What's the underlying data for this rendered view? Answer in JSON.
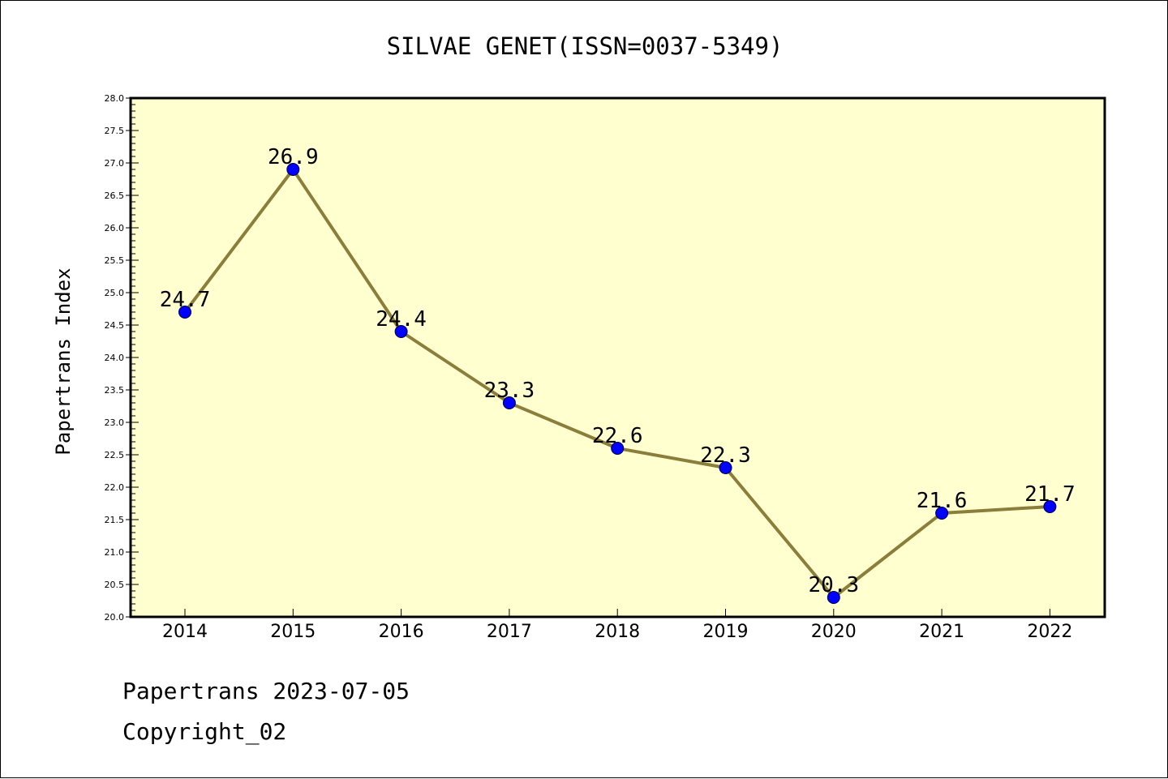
{
  "chart_data": {
    "type": "line",
    "title": "SILVAE GENET(ISSN=0037-5349)",
    "xlabel": "",
    "ylabel": "Papertrans Index",
    "categories": [
      "2014",
      "2015",
      "2016",
      "2017",
      "2018",
      "2019",
      "2020",
      "2021",
      "2022"
    ],
    "series": [
      {
        "values": [
          24.7,
          26.9,
          24.4,
          23.3,
          22.6,
          22.3,
          20.3,
          21.6,
          21.7
        ]
      }
    ],
    "data_labels": [
      "24.7",
      "26.9",
      "24.4",
      "23.3",
      "22.6",
      "22.3",
      "20.3",
      "21.6",
      "21.7"
    ],
    "ylim": [
      20.0,
      28.0
    ],
    "yticks": [
      "20.0",
      "20.5",
      "21.0",
      "21.5",
      "22.0",
      "22.5",
      "23.0",
      "23.5",
      "24.0",
      "24.5",
      "25.0",
      "25.5",
      "26.0",
      "26.5",
      "27.0",
      "27.5",
      "28.0"
    ],
    "grid": false,
    "legend": "none",
    "colors": {
      "plot_background": "#FFFFD0",
      "line": "#8B7D3A",
      "marker": "#0000FF"
    }
  },
  "footer": {
    "source": "Papertrans 2023-07-05",
    "copyright": "Copyright_02"
  }
}
